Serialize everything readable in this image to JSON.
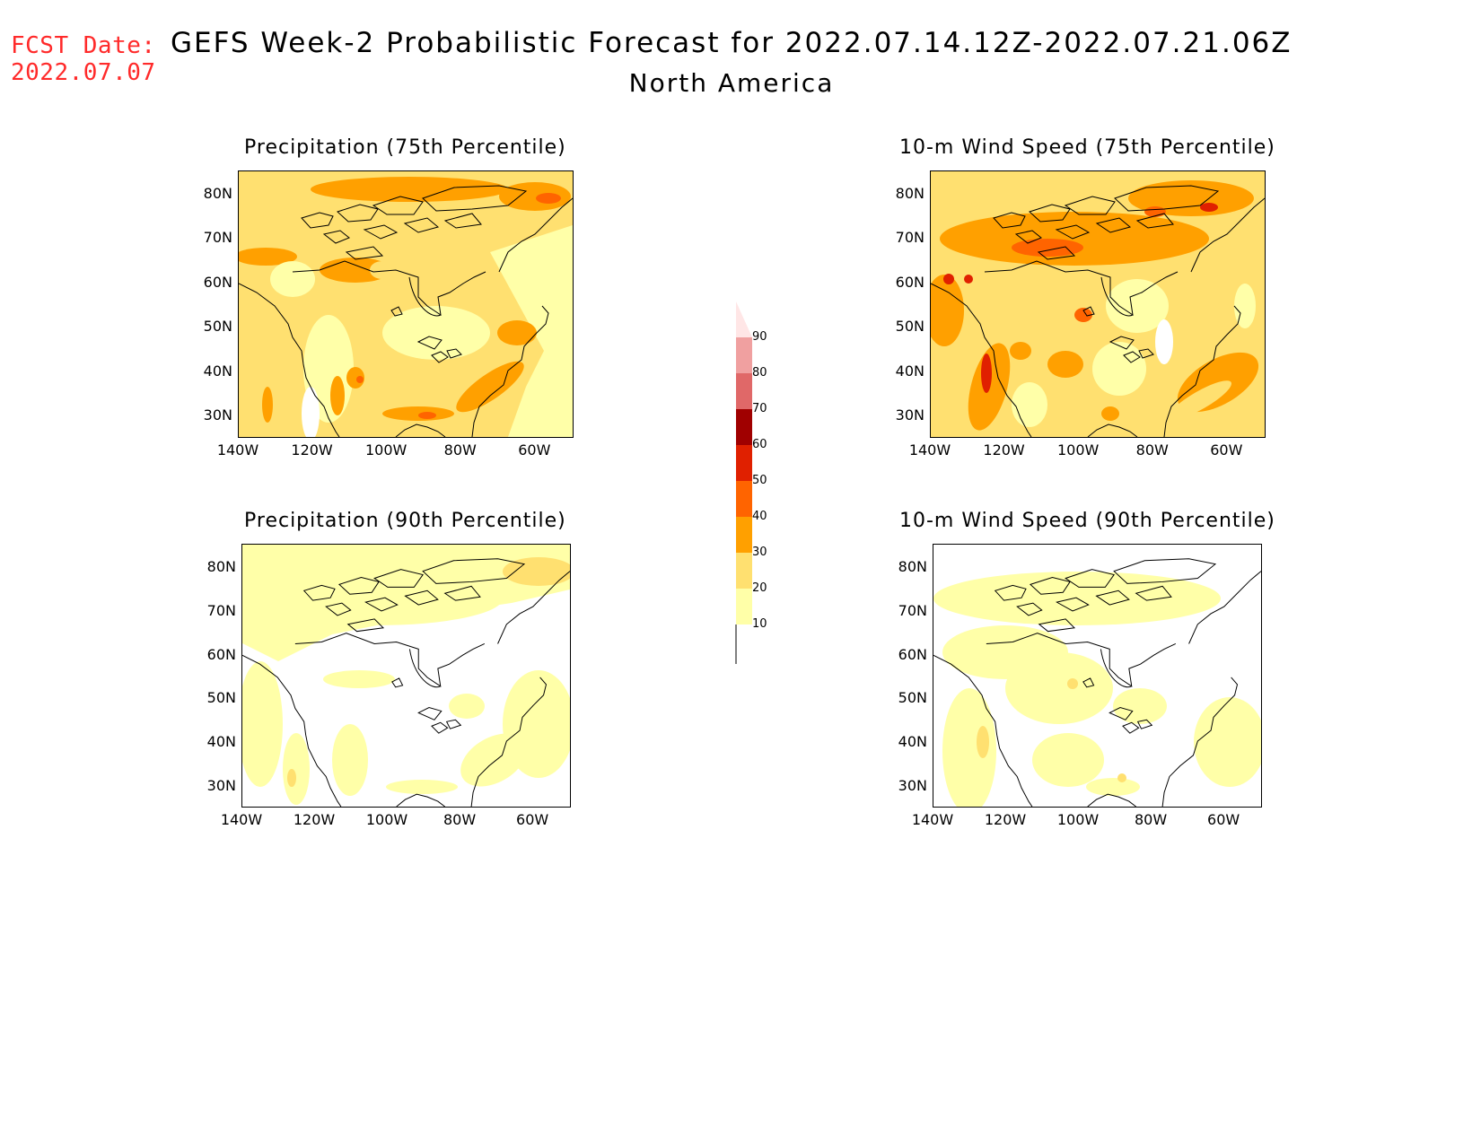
{
  "header": {
    "fcst_label": "FCST Date:",
    "fcst_date": "2022.07.07",
    "title": "GEFS Week-2 Probabilistic Forecast for 2022.07.14.12Z-2022.07.21.06Z",
    "subtitle": "North America"
  },
  "panels": [
    {
      "title": "Precipitation (75th Percentile)",
      "variable": "precipitation",
      "percentile": "75th"
    },
    {
      "title": "10-m Wind Speed (75th Percentile)",
      "variable": "wind",
      "percentile": "75th"
    },
    {
      "title": "Precipitation (90th Percentile)",
      "variable": "precipitation",
      "percentile": "90th"
    },
    {
      "title": "10-m Wind Speed (90th Percentile)",
      "variable": "wind",
      "percentile": "90th"
    }
  ],
  "lat_ticks": [
    "80N",
    "70N",
    "60N",
    "50N",
    "40N",
    "30N"
  ],
  "lon_ticks": [
    "140W",
    "120W",
    "100W",
    "80W",
    "60W"
  ],
  "legend": {
    "labels": [
      "90",
      "80",
      "70",
      "60",
      "50",
      "40",
      "30",
      "20",
      "10"
    ],
    "colors": [
      "#ffe6e6",
      "#f0a0a0",
      "#e06868",
      "#a00000",
      "#e02000",
      "#ff6400",
      "#ffa000",
      "#ffe070",
      "#ffffa8"
    ]
  }
}
